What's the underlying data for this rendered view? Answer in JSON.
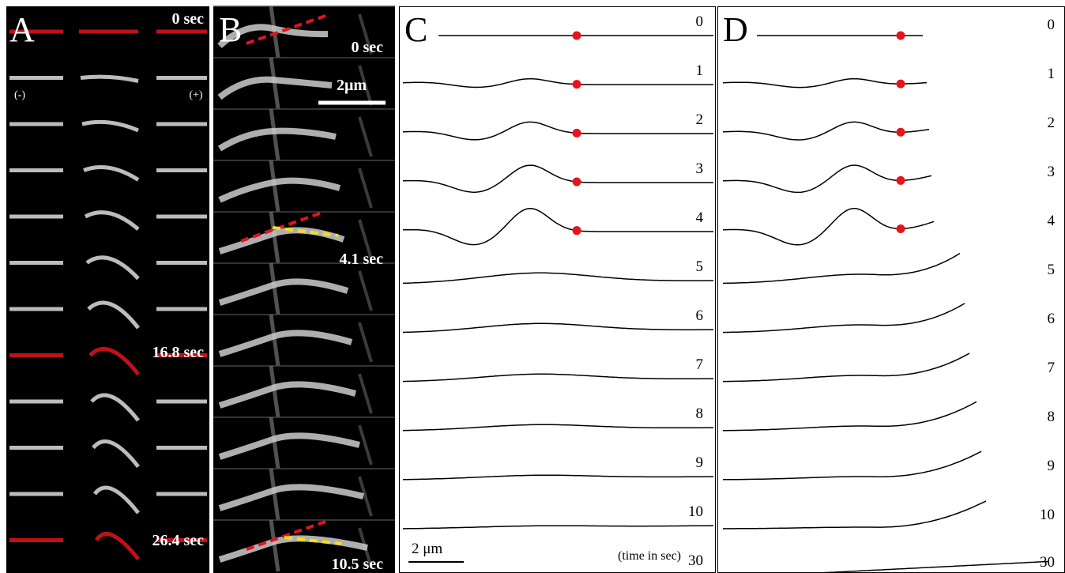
{
  "panels": [
    {
      "label": "A",
      "annotations": [
        "0 sec",
        "(-)",
        "(+)",
        "16.8 sec",
        "26.4 sec"
      ]
    },
    {
      "label": "B",
      "annotations": [
        "0 sec",
        "2μm",
        "4.1 sec",
        "10.5 sec"
      ]
    },
    {
      "label": "C",
      "rows": [
        "0",
        "1",
        "2",
        "3",
        "4",
        "5",
        "6",
        "7",
        "8",
        "9",
        "10",
        "30"
      ],
      "scale": "2 μm",
      "note": "(time in sec)"
    },
    {
      "label": "D",
      "rows": [
        "0",
        "1",
        "2",
        "3",
        "4",
        "5",
        "6",
        "7",
        "8",
        "9",
        "10",
        "30"
      ]
    }
  ]
}
